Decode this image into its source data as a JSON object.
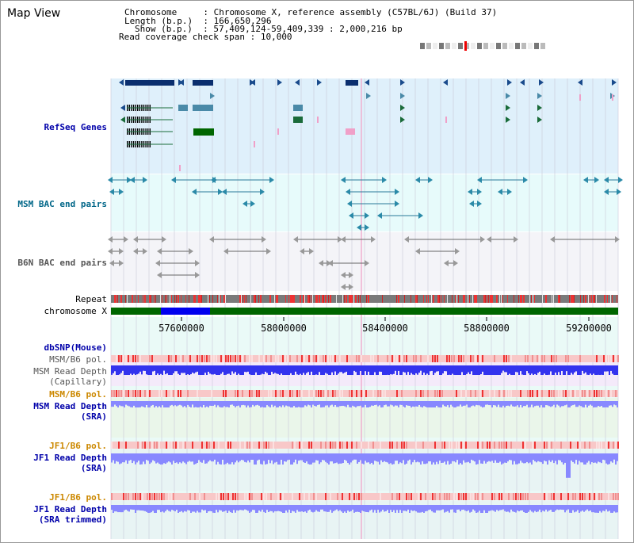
{
  "page": {
    "title": "Map View"
  },
  "info": {
    "chromosome_key": "Chromosome",
    "chromosome_val": ": Chromosome X, reference assembly (C57BL/6J) (Build 37)",
    "length_key": "Length (b.p.)",
    "length_val": ": 166,650,296",
    "show_key": "Show (b.p.)",
    "show_val": ": 57,409,124-59,409,339 : 2,000,216 bp",
    "coverage_key": "Read coverage check span",
    "coverage_val": ": 10,000"
  },
  "tracks": {
    "refseq": {
      "label": "RefSeq Genes",
      "color": "#0000aa"
    },
    "msm_bac": {
      "label": "MSM BAC end pairs",
      "color": "#006688"
    },
    "b6n_bac": {
      "label": "B6N BAC end pairs",
      "color": "#555555"
    },
    "repeat": {
      "label": "Repeat"
    },
    "chromosome": {
      "label": "chromosome X"
    },
    "dbsnp": {
      "label": "dbSNP(Mouse)",
      "color": "#0000aa"
    },
    "msm_b6_pol_cap": {
      "label": "MSM/B6 pol.",
      "color": "#555555"
    },
    "msm_depth_cap": {
      "label_line1": "MSM Read Depth",
      "label_line2": "(Capillary)",
      "color": "#555555"
    },
    "msm_b6_pol_sra": {
      "label": "MSM/B6 pol.",
      "color": "#cc8800"
    },
    "msm_depth_sra": {
      "label_line1": "MSM Read Depth",
      "label_line2": "(SRA)",
      "color": "#0000aa"
    },
    "jf1_b6_pol": {
      "label": "JF1/B6 pol.",
      "color": "#cc8800"
    },
    "jf1_depth": {
      "label_line1": "JF1 Read Depth",
      "label_line2": "(SRA)",
      "color": "#0000aa"
    },
    "jf1_b6_pol2": {
      "label": "JF1/B6 pol.",
      "color": "#cc8800"
    },
    "jf1_depth_trim": {
      "label_line1": "JF1 Read Depth",
      "label_line2": "(SRA trimmed)",
      "color": "#0000aa"
    }
  },
  "ruler": {
    "ticks": [
      "57600000",
      "58000000",
      "58400000",
      "58800000",
      "59200000"
    ]
  },
  "colors": {
    "refseq_bg": "#dff0fb",
    "bac_bg": "#e7fbfb",
    "b6n_bg": "#f4f4f8",
    "chrom_green": "#006600",
    "chrom_highlight": "#0000ee",
    "depth_blue": "#3333ee",
    "sra_blue": "#8888ff",
    "pol_red": "#ee3333"
  }
}
